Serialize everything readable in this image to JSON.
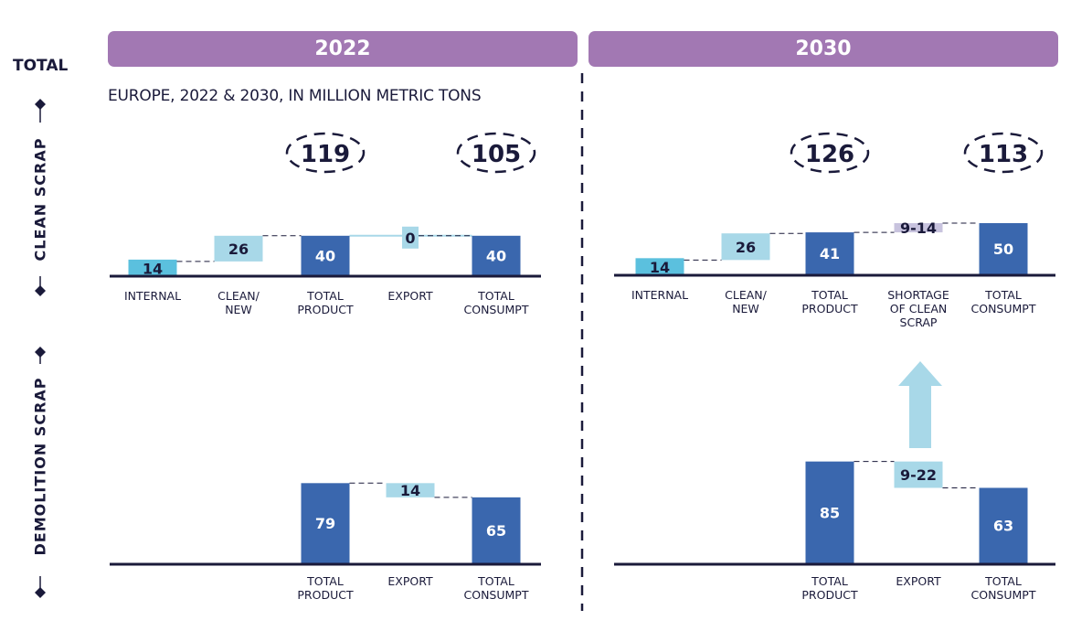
{
  "header": {
    "row_label": "TOTAL",
    "subtitle": "EUROPE, 2022 & 2030, IN MILLION METRIC TONS",
    "years": [
      "2022",
      "2030"
    ]
  },
  "side_labels": {
    "clean": "CLEAN SCRAP",
    "demolition": "DEMOLITION SCRAP"
  },
  "colors": {
    "banner": "#a278b3",
    "dark_blue": "#3a67ae",
    "light_blue": "#a8d8e8",
    "cyan": "#5bc0de",
    "lavender": "#c8c3de",
    "axis": "#1a1a3a"
  },
  "chart_data": [
    {
      "type": "bar",
      "subtype": "waterfall",
      "panel": "2022-clean-scrap",
      "title": "2022 Clean Scrap",
      "unit": "million metric tons",
      "total_annotation": "119",
      "total_consumption_annotation": "105",
      "steps": [
        {
          "category": "INTERNAL",
          "label": "14",
          "value": 14,
          "kind": "internal"
        },
        {
          "category": "CLEAN/ NEW",
          "label": "26",
          "value": 26,
          "kind": "increment"
        },
        {
          "category": "TOTAL PRODUCT",
          "label": "40",
          "value": 40,
          "kind": "total"
        },
        {
          "category": "EXPORT",
          "label": "0",
          "value": 0,
          "kind": "decrement"
        },
        {
          "category": "TOTAL CONSUMPT",
          "label": "40",
          "value": 40,
          "kind": "total"
        }
      ]
    },
    {
      "type": "bar",
      "subtype": "waterfall",
      "panel": "2030-clean-scrap",
      "title": "2030 Clean Scrap",
      "unit": "million metric tons",
      "total_annotation": "126",
      "total_consumption_annotation": "113",
      "steps": [
        {
          "category": "INTERNAL",
          "label": "14",
          "value": 14,
          "kind": "internal"
        },
        {
          "category": "CLEAN/ NEW",
          "label": "26",
          "value": 26,
          "kind": "increment"
        },
        {
          "category": "TOTAL PRODUCT",
          "label": "41",
          "value": 41,
          "kind": "total"
        },
        {
          "category": "SHORTAGE OF CLEAN SCRAP",
          "label": "9-14",
          "value": 9,
          "kind": "shortage"
        },
        {
          "category": "TOTAL CONSUMPT",
          "label": "50",
          "value": 50,
          "kind": "total"
        }
      ]
    },
    {
      "type": "bar",
      "subtype": "waterfall",
      "panel": "2022-demolition-scrap",
      "title": "2022 Demolition Scrap",
      "unit": "million metric tons",
      "steps": [
        {
          "category": "TOTAL PRODUCT",
          "label": "79",
          "value": 79,
          "kind": "total"
        },
        {
          "category": "EXPORT",
          "label": "14",
          "value": 14,
          "kind": "decrement"
        },
        {
          "category": "TOTAL CONSUMPT",
          "label": "65",
          "value": 65,
          "kind": "total"
        }
      ]
    },
    {
      "type": "bar",
      "subtype": "waterfall",
      "panel": "2030-demolition-scrap",
      "title": "2030 Demolition Scrap",
      "unit": "million metric tons",
      "steps": [
        {
          "category": "TOTAL PRODUCT",
          "label": "85",
          "value": 85,
          "kind": "total"
        },
        {
          "category": "EXPORT",
          "label": "9-22",
          "value": 22,
          "kind": "decrement"
        },
        {
          "category": "TOTAL CONSUMPT",
          "label": "63",
          "value": 63,
          "kind": "total"
        }
      ],
      "annotation": "upward arrow from export to shortage of clean scrap"
    }
  ]
}
